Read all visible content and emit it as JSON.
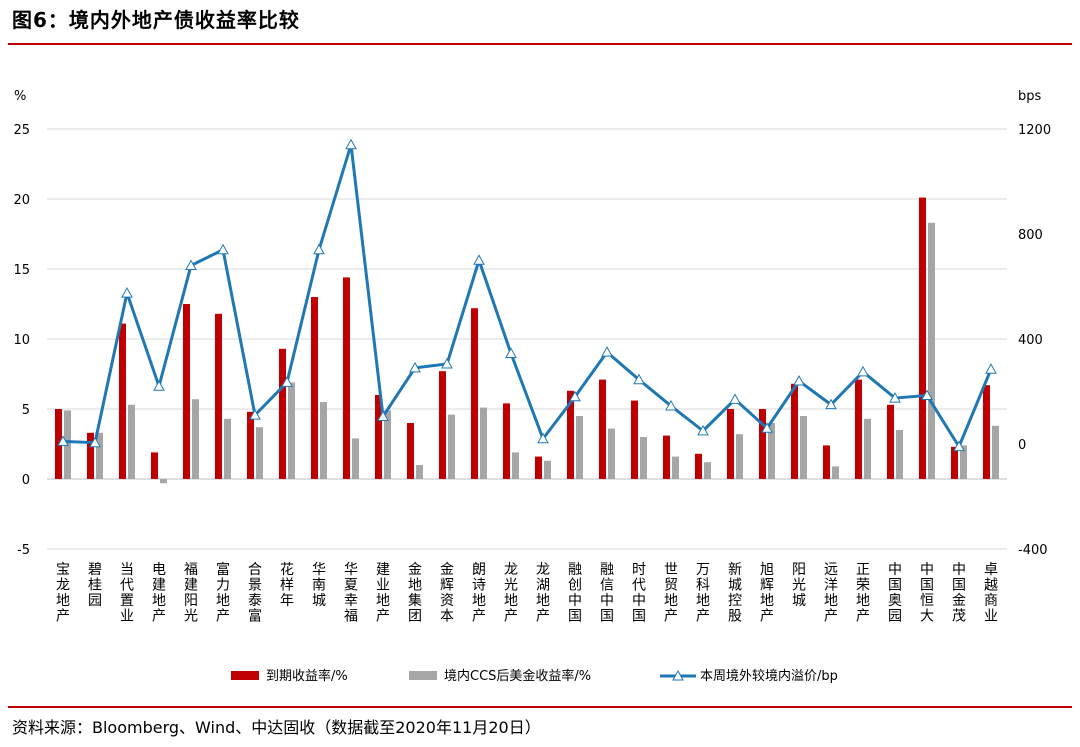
{
  "header": {
    "title": "图6：境内外地产债收益率比较"
  },
  "footer": {
    "source": "资料来源：Bloomberg、Wind、中达固收（数据截至2020年11月20日）"
  },
  "colors": {
    "bar1": "#c00000",
    "bar2": "#a6a6a6",
    "line": "#1f77b4",
    "rule": "#c00000"
  },
  "chart_data": {
    "type": "bar",
    "categories": [
      "宝龙地产",
      "碧桂园",
      "当代置业",
      "电建地产",
      "福建阳光",
      "富力地产",
      "合景泰富",
      "花样年",
      "华南城",
      "华夏幸福",
      "建业地产",
      "金地集团",
      "金辉资本",
      "朗诗地产",
      "龙光地产",
      "龙湖地产",
      "融创中国",
      "融信中国",
      "时代中国",
      "世贸地产",
      "万科地产",
      "新城控股",
      "旭辉地产",
      "阳光城",
      "远洋地产",
      "正荣地产",
      "中国奥园",
      "中国恒大",
      "中国金茂",
      "卓越商业"
    ],
    "left_axis": {
      "unit": "%",
      "ylim": [
        -5,
        25
      ],
      "ticks": [
        -5,
        0,
        5,
        10,
        15,
        20,
        25
      ]
    },
    "right_axis": {
      "unit": "bps",
      "ylim": [
        -400,
        1200
      ],
      "ticks": [
        -400,
        0,
        400,
        800,
        1200
      ]
    },
    "series": [
      {
        "name": "到期收益率/%",
        "type": "bar",
        "axis": "left",
        "values": [
          5.0,
          3.3,
          11.1,
          1.9,
          12.5,
          11.8,
          4.8,
          9.3,
          13.0,
          14.4,
          6.0,
          4.0,
          7.7,
          12.2,
          5.4,
          1.6,
          6.3,
          7.1,
          5.6,
          3.1,
          1.8,
          5.0,
          5.0,
          6.8,
          2.4,
          7.1,
          5.3,
          20.1,
          2.3,
          6.7
        ]
      },
      {
        "name": "境内CCS后美金收益率/%",
        "type": "bar",
        "axis": "left",
        "values": [
          4.9,
          3.3,
          5.3,
          -0.3,
          5.7,
          4.3,
          3.7,
          6.9,
          5.5,
          2.9,
          4.9,
          1.0,
          4.6,
          5.1,
          1.9,
          1.3,
          4.5,
          3.6,
          3.0,
          1.6,
          1.2,
          3.2,
          4.0,
          4.5,
          0.9,
          4.3,
          3.5,
          18.3,
          2.4,
          3.8
        ]
      },
      {
        "name": "本周境外较境内溢价/bp",
        "type": "line",
        "axis": "right",
        "values": [
          10,
          5,
          575,
          220,
          680,
          740,
          110,
          235,
          740,
          1140,
          105,
          290,
          305,
          700,
          345,
          20,
          180,
          350,
          245,
          145,
          50,
          170,
          60,
          240,
          150,
          275,
          175,
          185,
          -10,
          285
        ]
      }
    ]
  }
}
